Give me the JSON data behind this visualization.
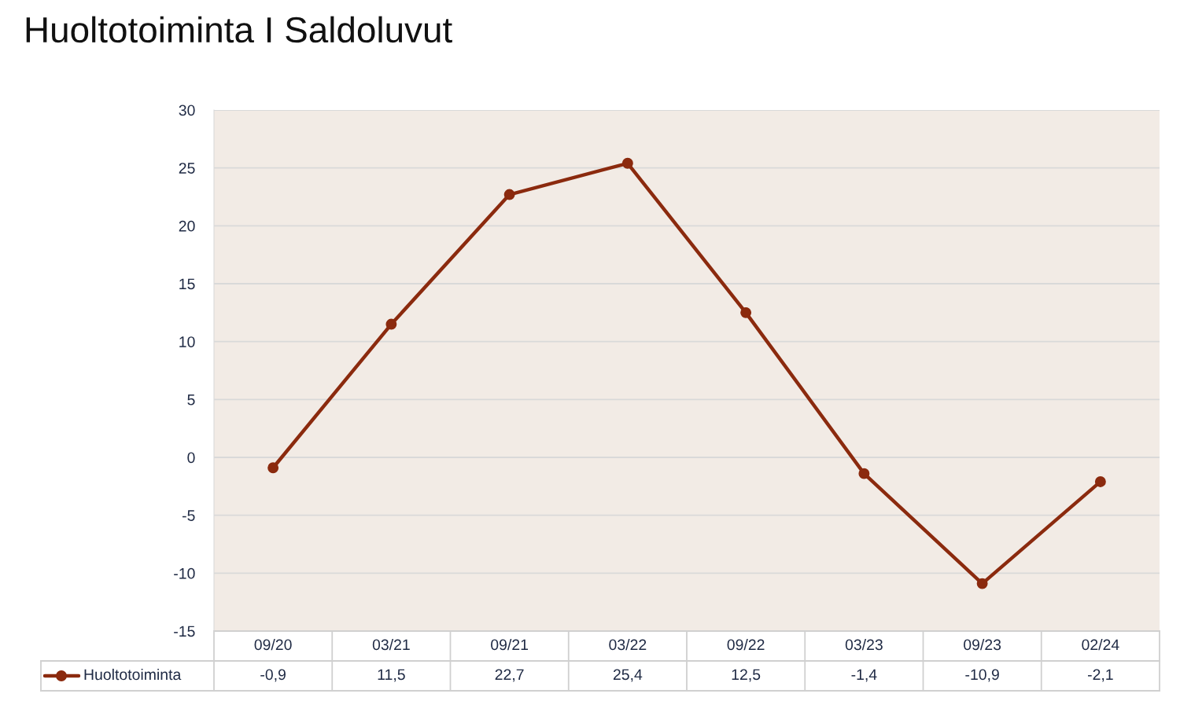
{
  "chart_data": {
    "type": "line",
    "title": "Huoltotoiminta I Saldoluvut",
    "categories": [
      "09/20",
      "03/21",
      "09/21",
      "03/22",
      "09/22",
      "03/23",
      "09/23",
      "02/24"
    ],
    "series": [
      {
        "name": "Huoltotoiminta",
        "color": "#8b2a0e",
        "values": [
          -0.9,
          11.5,
          22.7,
          25.4,
          12.5,
          -1.4,
          -10.9,
          -2.1
        ],
        "value_labels": [
          "-0,9",
          "11,5",
          "22,7",
          "25,4",
          "12,5",
          "-1,4",
          "-10,9",
          "-2,1"
        ]
      }
    ],
    "ylim": [
      -15,
      30
    ],
    "yticks": [
      -15,
      -10,
      -5,
      0,
      5,
      10,
      15,
      20,
      25,
      30
    ],
    "grid": "y",
    "legend": "bottom left",
    "marker": "circle",
    "line_style": "solid"
  }
}
